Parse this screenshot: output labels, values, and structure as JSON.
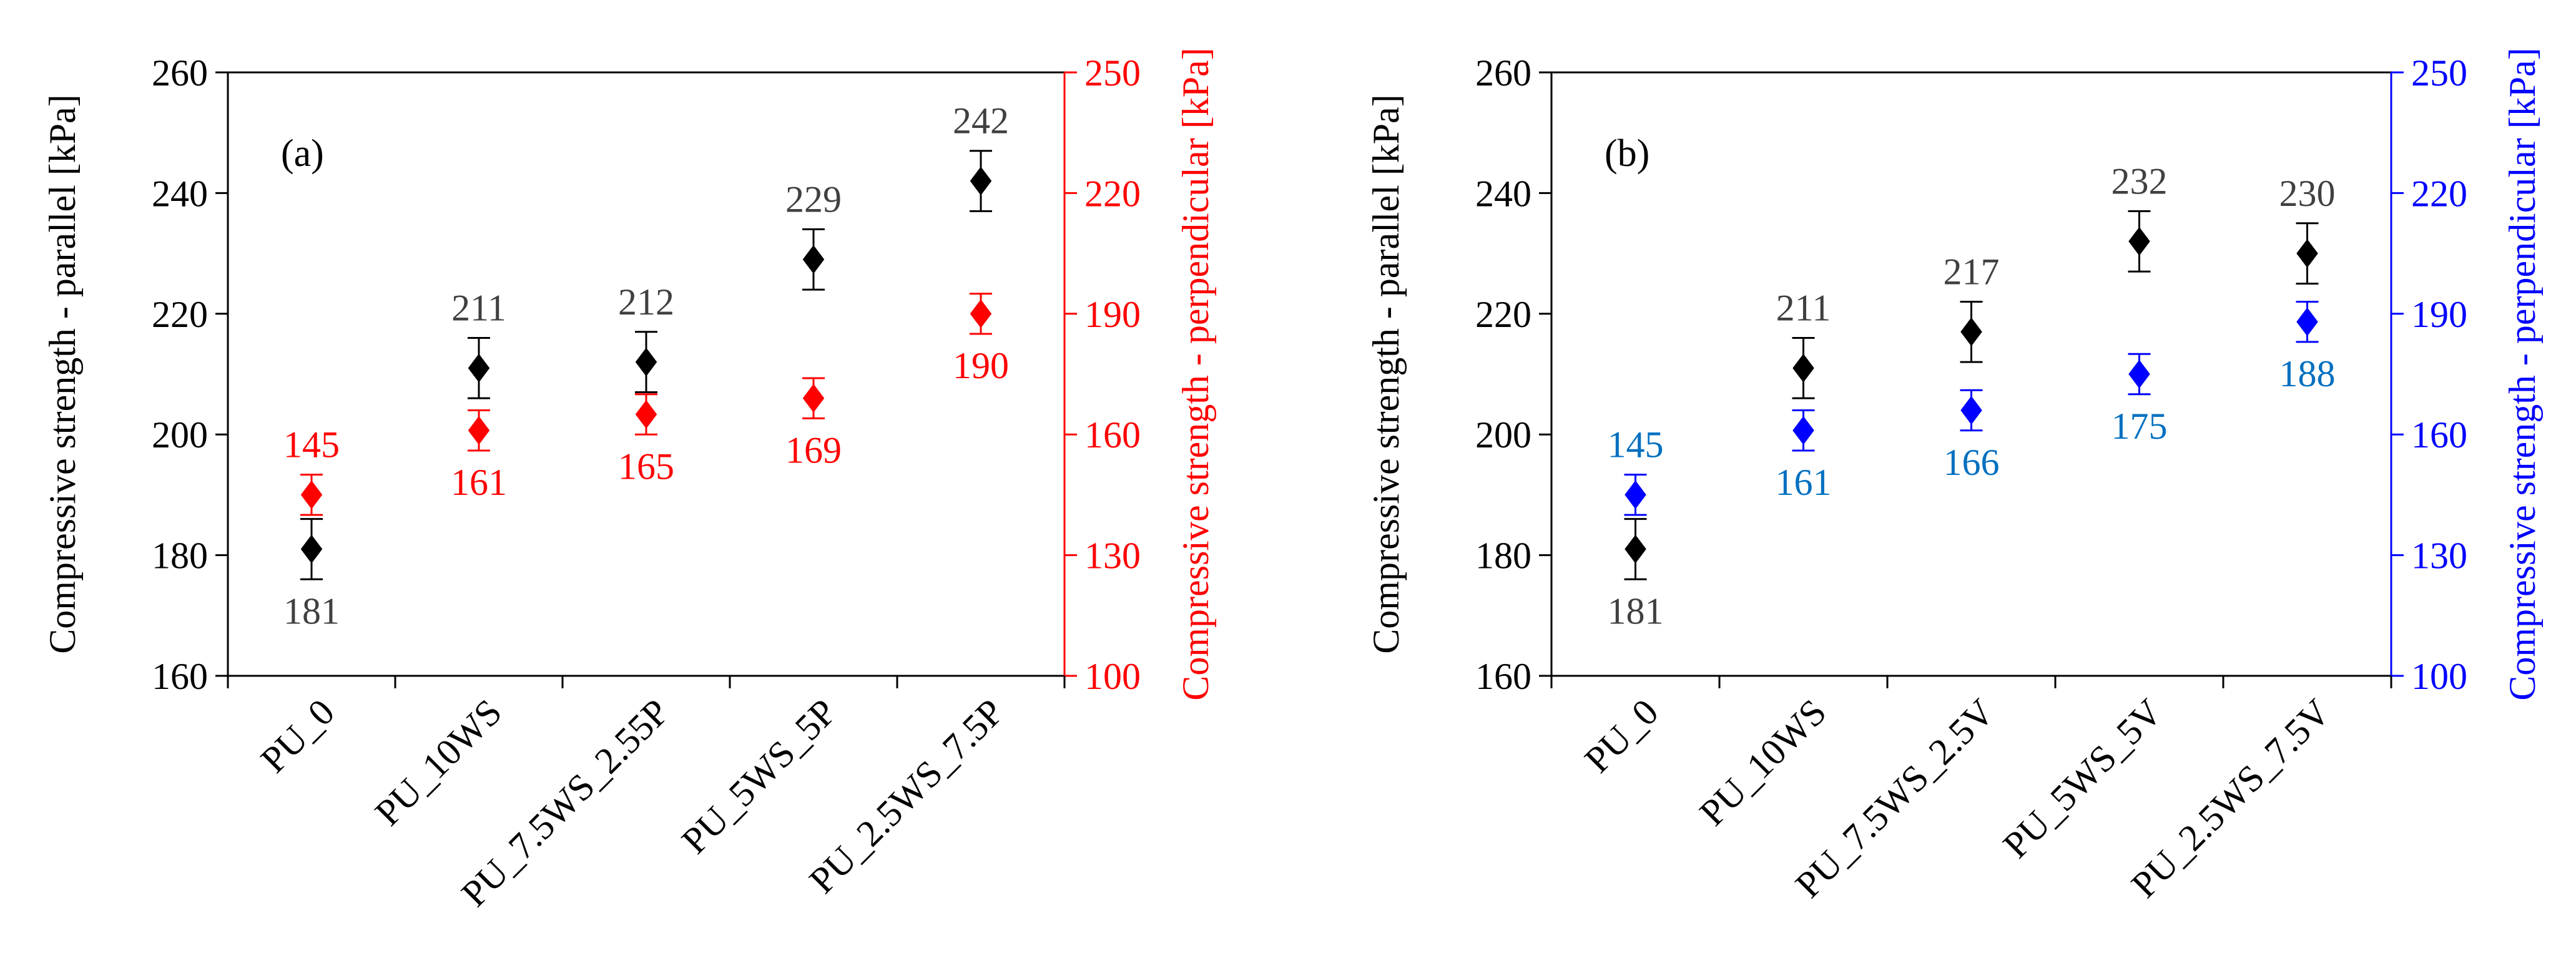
{
  "chart_data": [
    {
      "type": "scatter",
      "panel_label": "(a)",
      "categories": [
        "PU_0",
        "PU_10WS",
        "PU_7.5WS_2.55P",
        "PU_5WS_5P",
        "PU_2.5WS_7.5P"
      ],
      "ylabel": "Compressive strength - parallel [kPa]",
      "y2label": "Compressive strength - perpendicular  [kPa]",
      "ylim": [
        160,
        260
      ],
      "yticks": [
        160,
        180,
        200,
        220,
        240,
        260
      ],
      "y2lim": [
        100,
        250
      ],
      "y2ticks": [
        100,
        130,
        160,
        190,
        220,
        250
      ],
      "secondary_color": "#ff0000",
      "secondary_label_color": "#ff0000",
      "series": [
        {
          "name": "parallel",
          "axis": "left",
          "color": "#000000",
          "label_color": "#404040",
          "values": [
            181,
            211,
            212,
            229,
            242
          ],
          "errors": [
            5,
            5,
            5,
            5,
            5
          ],
          "labels": [
            "181",
            "211",
            "212",
            "229",
            "242"
          ],
          "label_pos": [
            "below",
            "above",
            "above",
            "above",
            "above"
          ]
        },
        {
          "name": "perpendicular",
          "axis": "right",
          "color": "#ff0000",
          "label_color": "#ff0000",
          "values": [
            145,
            161,
            165,
            169,
            190
          ],
          "errors": [
            5,
            5,
            5,
            5,
            5
          ],
          "labels": [
            "145",
            "161",
            "165",
            "169",
            "190"
          ],
          "label_pos": [
            "above",
            "below",
            "below",
            "below",
            "below"
          ]
        }
      ]
    },
    {
      "type": "scatter",
      "panel_label": "(b)",
      "categories": [
        "PU_0",
        "PU_10WS",
        "PU_7.5WS_2.5V",
        "PU_5WS_5V",
        "PU_2.5WS_7.5V"
      ],
      "ylabel": "Compressive strength - parallel [kPa]",
      "y2label": "Compressive strength - perpendicular  [kPa]",
      "ylim": [
        160,
        260
      ],
      "yticks": [
        160,
        180,
        200,
        220,
        240,
        260
      ],
      "y2lim": [
        100,
        250
      ],
      "y2ticks": [
        100,
        130,
        160,
        190,
        220,
        250
      ],
      "secondary_color": "#0000ff",
      "secondary_label_color": "#0070c0",
      "series": [
        {
          "name": "parallel",
          "axis": "left",
          "color": "#000000",
          "label_color": "#404040",
          "values": [
            181,
            211,
            217,
            232,
            230
          ],
          "errors": [
            5,
            5,
            5,
            5,
            5
          ],
          "labels": [
            "181",
            "211",
            "217",
            "232",
            "230"
          ],
          "label_pos": [
            "below",
            "above",
            "above",
            "above",
            "above"
          ]
        },
        {
          "name": "perpendicular",
          "axis": "right",
          "color": "#0000ff",
          "label_color": "#0070c0",
          "values": [
            145,
            161,
            166,
            175,
            188
          ],
          "errors": [
            5,
            5,
            5,
            5,
            5
          ],
          "labels": [
            "145",
            "161",
            "166",
            "175",
            "188"
          ],
          "label_pos": [
            "above",
            "below",
            "below",
            "below",
            "below"
          ]
        }
      ]
    }
  ]
}
